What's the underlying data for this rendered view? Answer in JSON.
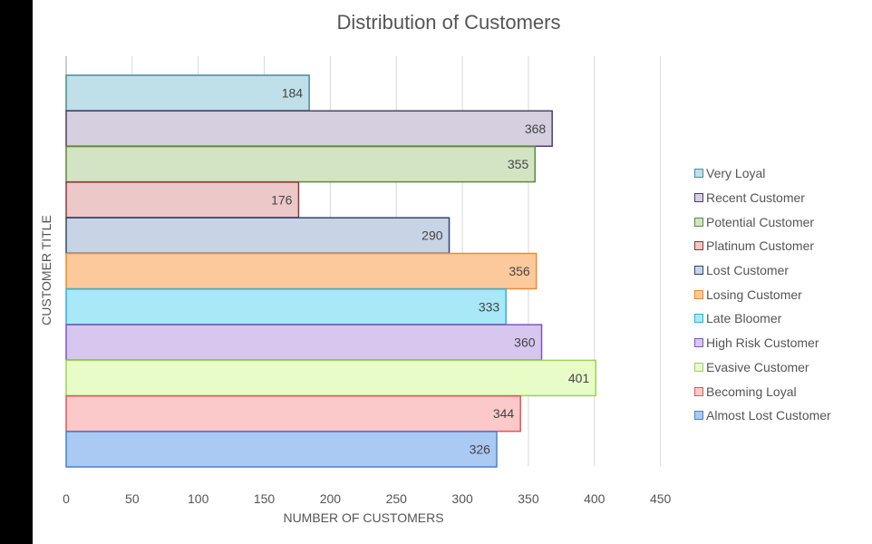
{
  "chart_data": {
    "type": "bar",
    "orientation": "horizontal",
    "title": "Distribution of Customers",
    "xlabel": "NUMBER OF CUSTOMERS",
    "ylabel": "CUSTOMER TITLE",
    "xlim": [
      0,
      450
    ],
    "xticks": [
      0,
      50,
      100,
      150,
      200,
      250,
      300,
      350,
      400,
      450
    ],
    "grid": true,
    "legend_position": "right",
    "series": [
      {
        "name": "Very Loyal",
        "value": 184,
        "fill": "#bfe0e8",
        "stroke": "#4a8a9c"
      },
      {
        "name": "Recent Customer",
        "value": 368,
        "fill": "#d5cfe0",
        "stroke": "#4c3f66"
      },
      {
        "name": "Potential Customer",
        "value": 355,
        "fill": "#d3e4c4",
        "stroke": "#5a8a3e"
      },
      {
        "name": "Platinum Customer",
        "value": 176,
        "fill": "#ecc8c8",
        "stroke": "#8e3a3a"
      },
      {
        "name": "Lost Customer",
        "value": 290,
        "fill": "#c9d3e6",
        "stroke": "#2f4577"
      },
      {
        "name": "Losing Customer",
        "value": 356,
        "fill": "#fcc99c",
        "stroke": "#f08a2c"
      },
      {
        "name": "Late Bloomer",
        "value": 333,
        "fill": "#a9e8f6",
        "stroke": "#35b0d2"
      },
      {
        "name": "High Risk Customer",
        "value": 360,
        "fill": "#d7c6ee",
        "stroke": "#7f55c2"
      },
      {
        "name": "Evasive Customer",
        "value": 401,
        "fill": "#e8fcc8",
        "stroke": "#9ed256"
      },
      {
        "name": "Becoming Loyal",
        "value": 344,
        "fill": "#fbc9c9",
        "stroke": "#e05656"
      },
      {
        "name": "Almost Lost Customer",
        "value": 326,
        "fill": "#aac9f3",
        "stroke": "#4a7fd2"
      }
    ]
  }
}
